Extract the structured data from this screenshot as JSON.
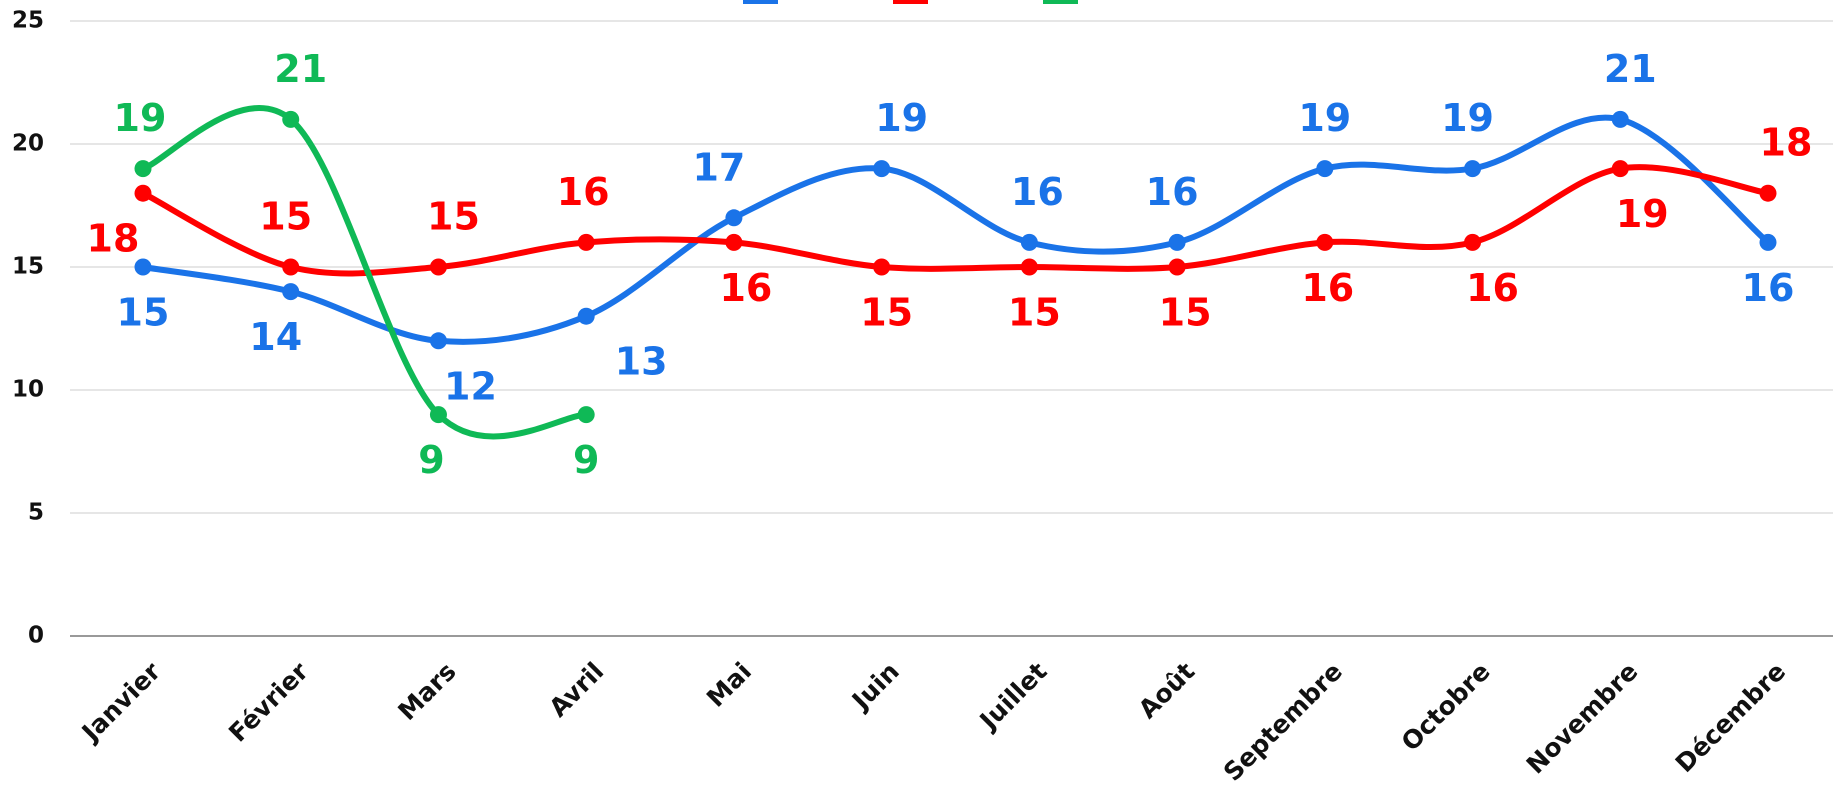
{
  "chart_data": {
    "type": "line",
    "categories": [
      "Janvier",
      "Février",
      "Mars",
      "Avril",
      "Mai",
      "Juin",
      "Juillet",
      "Août",
      "Septembre",
      "Octobre",
      "Novembre",
      "Décembre"
    ],
    "series": [
      {
        "color": "#1a73e8",
        "values": [
          15,
          14,
          12,
          13,
          17,
          19,
          16,
          16,
          19,
          19,
          21,
          16
        ]
      },
      {
        "color": "#ff0000",
        "values": [
          18,
          15,
          15,
          16,
          16,
          15,
          15,
          15,
          16,
          16,
          19,
          18
        ]
      },
      {
        "color": "#0fb956",
        "values": [
          19,
          21,
          9,
          9,
          null,
          null,
          null,
          null,
          null,
          null,
          null,
          null
        ]
      }
    ],
    "ylim": [
      0,
      25
    ],
    "yticks": [
      0,
      5,
      10,
      15,
      20,
      25
    ],
    "grid": true,
    "smooth": true
  }
}
